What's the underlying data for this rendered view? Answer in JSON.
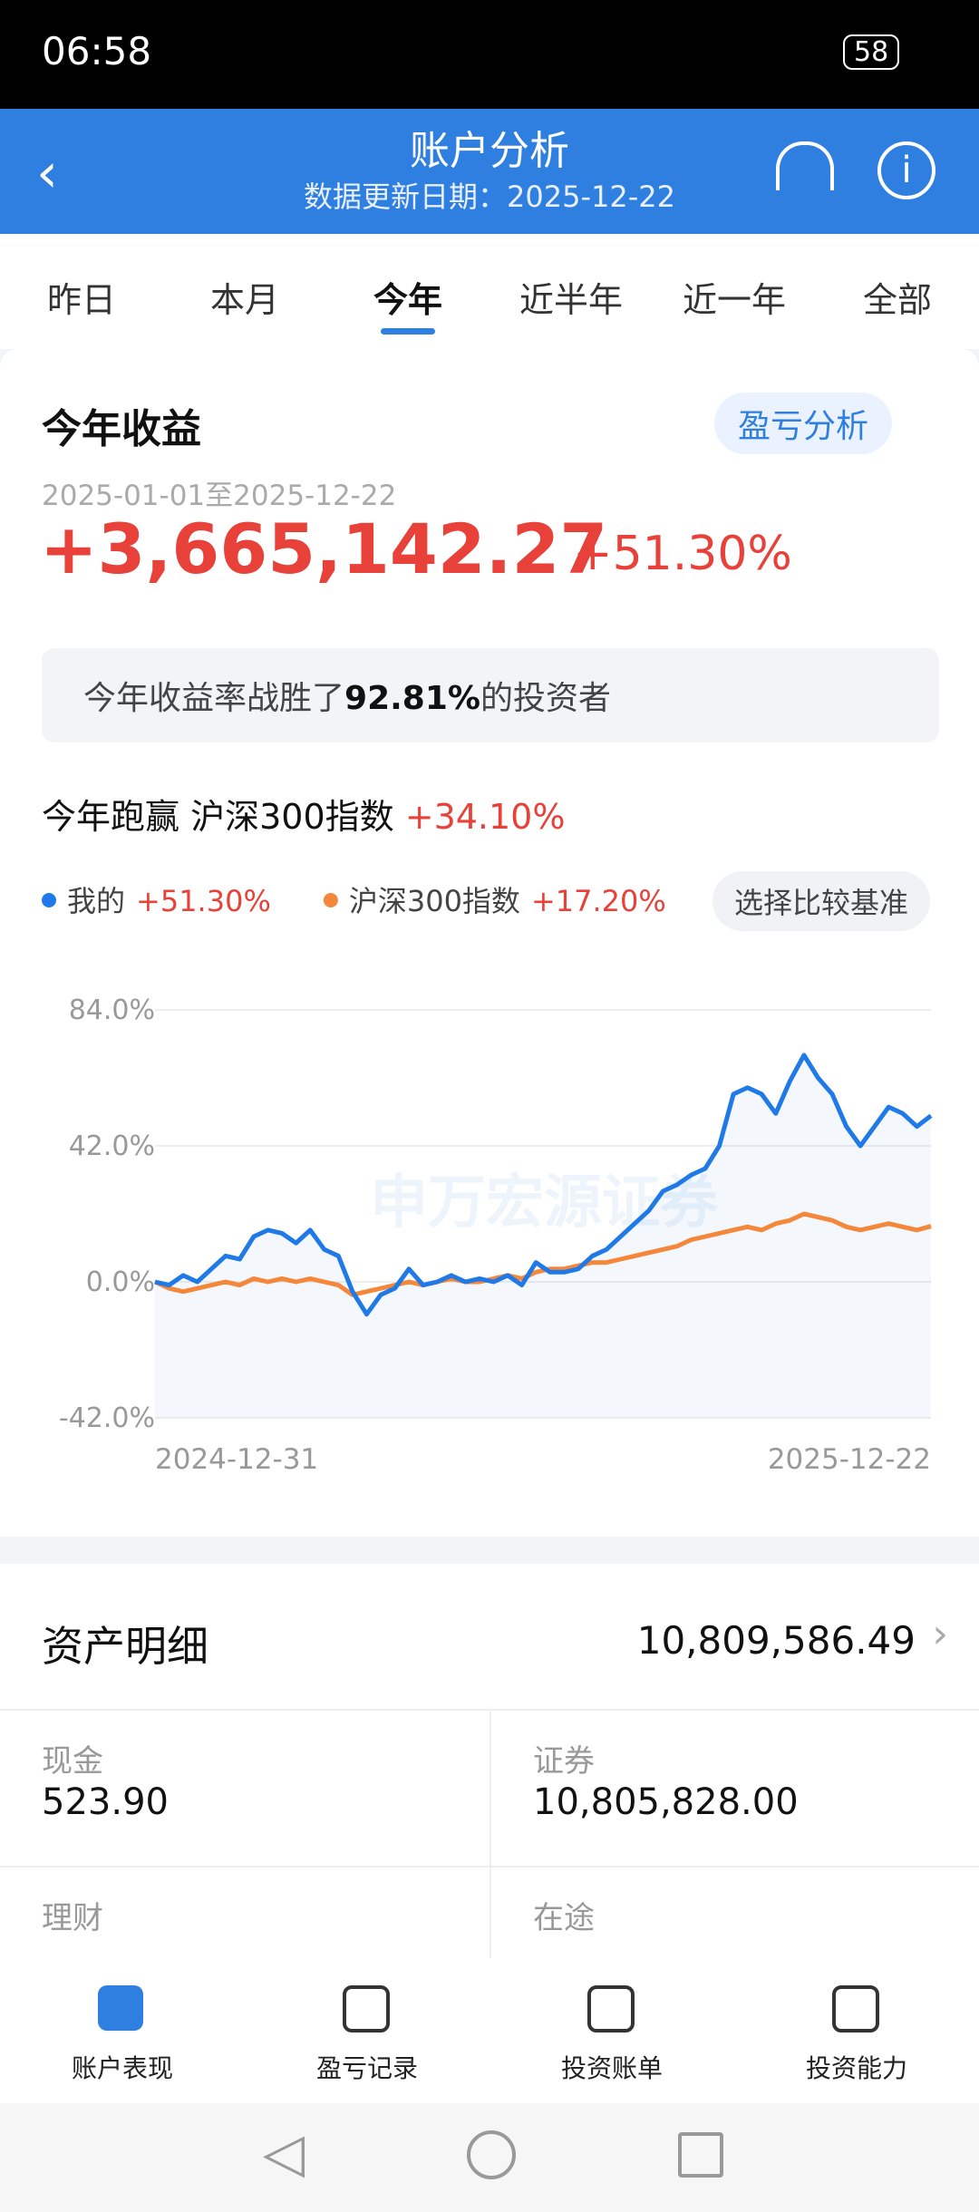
{
  "status_bar": {
    "time": "06:58",
    "battery": "58"
  },
  "header": {
    "title": "账户分析",
    "subtitle": "数据更新日期：2025-12-22"
  },
  "tabs": [
    "昨日",
    "本月",
    "今年",
    "近半年",
    "近一年",
    "全部"
  ],
  "active_tab": 2,
  "profit": {
    "title": "今年收益",
    "button": "盈亏分析",
    "range": "2025-01-01至2025-12-22",
    "amount": "+3,665,142.27",
    "rate": "+51.30%",
    "beat": {
      "before": "今年收益率战胜了",
      "value": "92.81%",
      "after": "的投资者"
    },
    "compare": {
      "label": "今年跑赢",
      "index": "沪深300指数",
      "diff": "+34.10%"
    },
    "compare_button": "选择比较基准"
  },
  "chart_data": {
    "type": "line",
    "watermark": "申万宏源证券",
    "categories": [
      "2024-12-31",
      null,
      null,
      null,
      null,
      null,
      null,
      null,
      null,
      null,
      null,
      null,
      null,
      null,
      null,
      null,
      null,
      null,
      null,
      null,
      null,
      null,
      null,
      null,
      null,
      null,
      null,
      null,
      null,
      null,
      null,
      null,
      null,
      null,
      null,
      null,
      null,
      null,
      null,
      null,
      null,
      null,
      null,
      null,
      null,
      null,
      null,
      null,
      null,
      null,
      null,
      null,
      null,
      null,
      null,
      "2025-12-22"
    ],
    "series": [
      {
        "name": "我的",
        "summary": "+51.30%",
        "color": "#1f7ae8",
        "values": [
          0,
          -1,
          2,
          0,
          4,
          8,
          7,
          14,
          16,
          15,
          12,
          16,
          10,
          8,
          -3,
          -10,
          -4,
          -2,
          4,
          -1,
          0,
          2,
          0,
          1,
          0,
          2,
          -1,
          6,
          3,
          3,
          4,
          8,
          10,
          14,
          18,
          22,
          28,
          30,
          33,
          35,
          42,
          58,
          60,
          58,
          52,
          62,
          70,
          63,
          58,
          48,
          42,
          48,
          54,
          52,
          48,
          51.3
        ]
      },
      {
        "name": "沪深300指数",
        "summary": "+17.20%",
        "color": "#f5873a",
        "values": [
          0,
          -2,
          -3,
          -2,
          -1,
          0,
          -1,
          1,
          0,
          1,
          0,
          1,
          0,
          -1,
          -4,
          -3,
          -2,
          -1,
          0,
          -1,
          0,
          1,
          0,
          0,
          1,
          2,
          1,
          3,
          4,
          4,
          5,
          6,
          6,
          7,
          8,
          9,
          10,
          11,
          13,
          14,
          15,
          16,
          17,
          16,
          18,
          19,
          21,
          20,
          19,
          17,
          16,
          17,
          18,
          17,
          16,
          17.2
        ]
      }
    ],
    "ylim": [
      -42,
      84
    ],
    "yticks": [
      {
        "value": 84,
        "label": "84.0%"
      },
      {
        "value": 42,
        "label": "42.0%"
      },
      {
        "value": 0,
        "label": "0.0%"
      },
      {
        "value": -42,
        "label": "-42.0%"
      }
    ],
    "grid": true
  },
  "assets": {
    "title": "资产明细",
    "total": "10,809,586.49",
    "items": [
      {
        "label": "现金",
        "value": "523.90"
      },
      {
        "label": "证券",
        "value": "10,805,828.00"
      },
      {
        "label": "理财"
      },
      {
        "label": "在途"
      }
    ]
  },
  "bottom_nav": [
    "账户表现",
    "盈亏记录",
    "投资账单",
    "投资能力"
  ]
}
